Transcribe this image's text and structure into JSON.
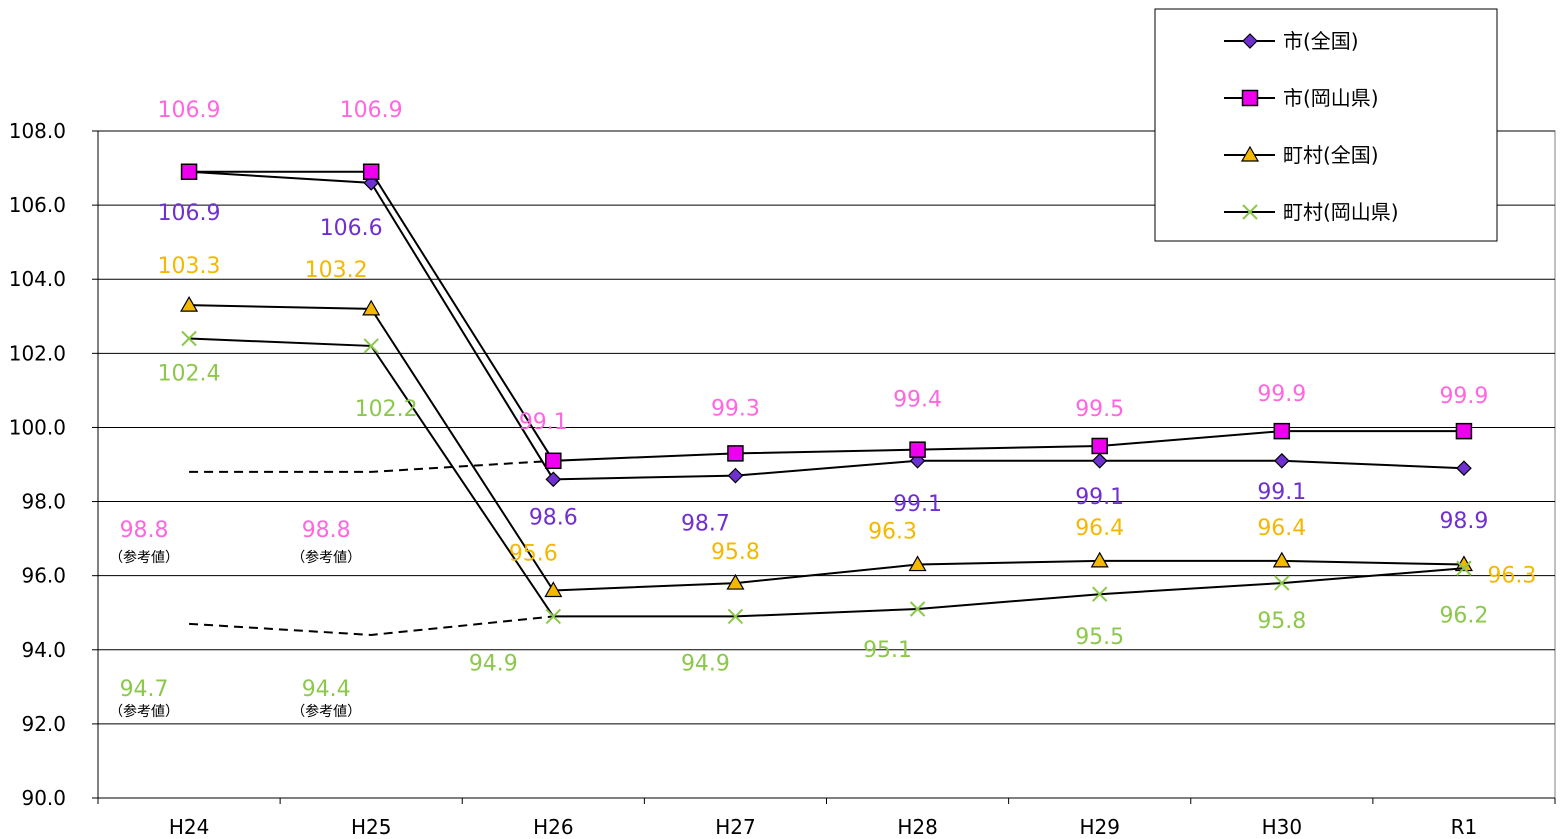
{
  "chart_data": {
    "type": "line",
    "categories": [
      "H24",
      "H25",
      "H26",
      "H27",
      "H28",
      "H29",
      "H30",
      "R1"
    ],
    "ylim": [
      90,
      108
    ],
    "yticks": [
      "90.0",
      "92.0",
      "94.0",
      "96.0",
      "98.0",
      "100.0",
      "102.0",
      "104.0",
      "106.0",
      "108.0"
    ],
    "grid": true,
    "legend_position": "top-right",
    "series": [
      {
        "name": "市(全国)",
        "color": "#7030D0",
        "marker": "diamond",
        "fill": "#7030D0",
        "values": [
          106.9,
          106.6,
          98.6,
          98.7,
          99.1,
          99.1,
          99.1,
          98.9
        ],
        "labels": [
          "106.9",
          "106.6",
          "98.6",
          "98.7",
          "99.1",
          "99.1",
          "99.1",
          "98.9"
        ]
      },
      {
        "name": "市(岡山県)",
        "color": "#FF66E0",
        "marker": "square",
        "fill": "#EE00EE",
        "values": [
          106.9,
          106.9,
          99.1,
          99.3,
          99.4,
          99.5,
          99.9,
          99.9
        ],
        "labels": [
          "106.9",
          "106.9",
          "99.1",
          "99.3",
          "99.4",
          "99.5",
          "99.9",
          "99.9"
        ]
      },
      {
        "name": "町村(全国)",
        "color": "#F5B800",
        "marker": "triangle",
        "fill": "#F5B800",
        "values": [
          103.3,
          103.2,
          95.6,
          95.8,
          96.3,
          96.4,
          96.4,
          96.3
        ],
        "labels": [
          "103.3",
          "103.2",
          "95.6",
          "95.8",
          "96.3",
          "96.4",
          "96.4",
          "96.3"
        ]
      },
      {
        "name": "町村(岡山県)",
        "color": "#8CC84B",
        "marker": "x",
        "fill": "#8CC84B",
        "values": [
          102.4,
          102.2,
          94.9,
          94.9,
          95.1,
          95.5,
          95.8,
          96.2
        ],
        "labels": [
          "102.4",
          "102.2",
          "94.9",
          "94.9",
          "95.1",
          "95.5",
          "95.8",
          "96.2"
        ]
      }
    ],
    "reference_series": [
      {
        "color": "#FF66E0",
        "values": [
          98.8,
          98.8
        ],
        "labels": [
          "98.8",
          "98.8"
        ]
      },
      {
        "color": "#8CC84B",
        "values": [
          94.7,
          94.4
        ],
        "labels": [
          "94.7",
          "94.4"
        ]
      }
    ],
    "reference_note": "（参考値）"
  }
}
